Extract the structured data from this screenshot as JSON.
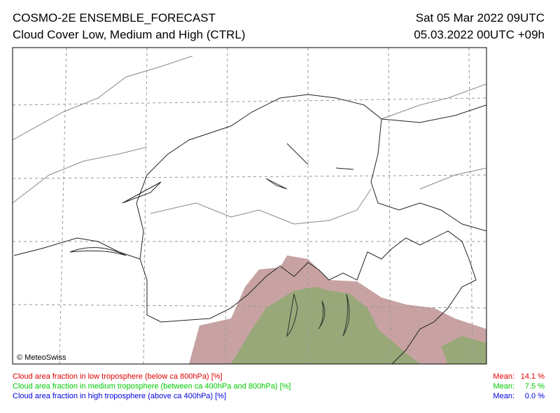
{
  "header": {
    "title": "COSMO-2E ENSEMBLE_FORECAST",
    "subtitle": "Cloud Cover Low, Medium and High (CTRL)",
    "valid_time": "Sat 05 Mar 2022 09UTC",
    "run_time": "05.03.2022 00UTC +09h",
    "valid_time_color": "#e00000"
  },
  "map": {
    "copyright": "© MeteoSwiss"
  },
  "legend": [
    {
      "label": "Cloud area fraction in low troposphere (below ca 800hPa) [%]",
      "mean_label": "Mean:",
      "mean": "14.1 %",
      "color": "#e00000"
    },
    {
      "label": "Cloud area fraction in medium troposphere (between ca 400hPa and 800hPa) [%]",
      "mean_label": "Mean:",
      "mean": "7.5 %",
      "color": "#00cc00"
    },
    {
      "label": "Cloud area fraction in high troposphere (above ca 400hPa) [%]",
      "mean_label": "Mean:",
      "mean": "0.0 %",
      "color": "#0000dd"
    }
  ]
}
